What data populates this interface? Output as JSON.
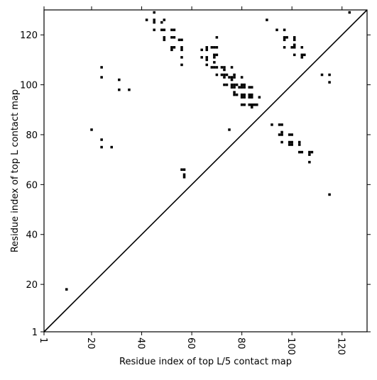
{
  "chart_data": {
    "type": "scatter",
    "title": "",
    "xlabel": "Residue index of top L/5 contact map",
    "ylabel": "Residue index of top L contact map",
    "xlim": [
      1,
      130
    ],
    "ylim": [
      1,
      130
    ],
    "x_ticks": [
      1,
      20,
      40,
      60,
      80,
      100,
      120
    ],
    "y_ticks": [
      1,
      20,
      40,
      60,
      80,
      100,
      120
    ],
    "x_tick_labels": [
      "1",
      "20",
      "40",
      "60",
      "80",
      "100",
      "120"
    ],
    "y_tick_labels": [
      "1",
      "20",
      "40",
      "60",
      "80",
      "100",
      "120"
    ],
    "grid": false,
    "diagonal_line": true,
    "marker_color": "#000000",
    "series": [
      {
        "points": [
          [
            10,
            18
          ],
          [
            20,
            82
          ],
          [
            24,
            78
          ],
          [
            24,
            75
          ],
          [
            28,
            75
          ],
          [
            24,
            107
          ],
          [
            24,
            103
          ],
          [
            31,
            102
          ],
          [
            31,
            98
          ],
          [
            35,
            98
          ],
          [
            42,
            126
          ],
          [
            45,
            129
          ],
          [
            45,
            126
          ],
          [
            45,
            125
          ],
          [
            45,
            122
          ],
          [
            48,
            125
          ],
          [
            49,
            126
          ],
          [
            48,
            122
          ],
          [
            49,
            122
          ],
          [
            49,
            119
          ],
          [
            49,
            118
          ],
          [
            52,
            122
          ],
          [
            53,
            122
          ],
          [
            52,
            119
          ],
          [
            53,
            119
          ],
          [
            52,
            115
          ],
          [
            53,
            115
          ],
          [
            52,
            114
          ],
          [
            55,
            118
          ],
          [
            56,
            118
          ],
          [
            56,
            115
          ],
          [
            56,
            114
          ],
          [
            56,
            111
          ],
          [
            56,
            108
          ],
          [
            56,
            66
          ],
          [
            57,
            66
          ],
          [
            57,
            64
          ],
          [
            57,
            63
          ],
          [
            64,
            114
          ],
          [
            64,
            111
          ],
          [
            66,
            115
          ],
          [
            66,
            114
          ],
          [
            66,
            111
          ],
          [
            66,
            110
          ],
          [
            66,
            108
          ],
          [
            68,
            115
          ],
          [
            69,
            115
          ],
          [
            70,
            115
          ],
          [
            69,
            112
          ],
          [
            70,
            112
          ],
          [
            69,
            111
          ],
          [
            68,
            107
          ],
          [
            69,
            107
          ],
          [
            70,
            107
          ],
          [
            70,
            104
          ],
          [
            70,
            119
          ],
          [
            69,
            109
          ],
          [
            72,
            107
          ],
          [
            73,
            107
          ],
          [
            73,
            106
          ],
          [
            72,
            104
          ],
          [
            73,
            104
          ],
          [
            74,
            104
          ],
          [
            73,
            103
          ],
          [
            73,
            100
          ],
          [
            74,
            100
          ],
          [
            75,
            103
          ],
          [
            76,
            103
          ],
          [
            76,
            107
          ],
          [
            77,
            104
          ],
          [
            77,
            103
          ],
          [
            76,
            102
          ],
          [
            76,
            100
          ],
          [
            77,
            100
          ],
          [
            78,
            100
          ],
          [
            76,
            99
          ],
          [
            77,
            99
          ],
          [
            77,
            97
          ],
          [
            78,
            96
          ],
          [
            77,
            96
          ],
          [
            79,
            99
          ],
          [
            80,
            103
          ],
          [
            80,
            100
          ],
          [
            81,
            100
          ],
          [
            80,
            99
          ],
          [
            81,
            99
          ],
          [
            80,
            96
          ],
          [
            81,
            96
          ],
          [
            80,
            95
          ],
          [
            81,
            95
          ],
          [
            80,
            92
          ],
          [
            81,
            92
          ],
          [
            83,
            99
          ],
          [
            84,
            99
          ],
          [
            83,
            96
          ],
          [
            84,
            96
          ],
          [
            83,
            95
          ],
          [
            84,
            95
          ],
          [
            83,
            92
          ],
          [
            84,
            92
          ],
          [
            85,
            92
          ],
          [
            86,
            92
          ],
          [
            84,
            91
          ],
          [
            87,
            95
          ],
          [
            75,
            82
          ],
          [
            90,
            126
          ],
          [
            94,
            122
          ],
          [
            97,
            122
          ],
          [
            97,
            119
          ],
          [
            98,
            119
          ],
          [
            97,
            118
          ],
          [
            97,
            115
          ],
          [
            100,
            115
          ],
          [
            101,
            115
          ],
          [
            101,
            119
          ],
          [
            101,
            118
          ],
          [
            101,
            112
          ],
          [
            101,
            116
          ],
          [
            104,
            115
          ],
          [
            104,
            112
          ],
          [
            105,
            112
          ],
          [
            104,
            111
          ],
          [
            92,
            84
          ],
          [
            95,
            84
          ],
          [
            96,
            84
          ],
          [
            95,
            80
          ],
          [
            96,
            81
          ],
          [
            96,
            80
          ],
          [
            96,
            77
          ],
          [
            99,
            80
          ],
          [
            100,
            80
          ],
          [
            99,
            77
          ],
          [
            100,
            77
          ],
          [
            99,
            76
          ],
          [
            100,
            76
          ],
          [
            103,
            77
          ],
          [
            103,
            76
          ],
          [
            103,
            73
          ],
          [
            104,
            73
          ],
          [
            107,
            73
          ],
          [
            108,
            73
          ],
          [
            107,
            72
          ],
          [
            107,
            69
          ],
          [
            112,
            104
          ],
          [
            115,
            104
          ],
          [
            115,
            101
          ],
          [
            115,
            56
          ],
          [
            123,
            129
          ]
        ]
      }
    ]
  }
}
